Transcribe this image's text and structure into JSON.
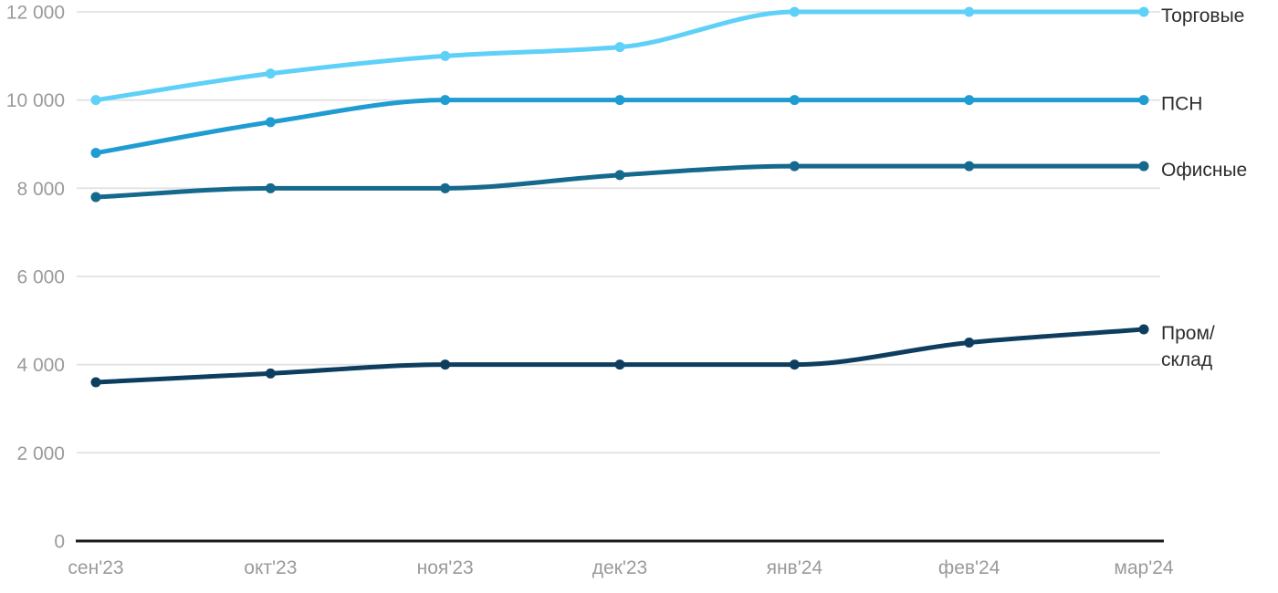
{
  "chart_data": {
    "type": "line",
    "title": "",
    "xlabel": "",
    "ylabel": "",
    "categories": [
      "сен'23",
      "окт'23",
      "ноя'23",
      "дек'23",
      "янв'24",
      "фев'24",
      "мар'24"
    ],
    "series": [
      {
        "name": "Торговые",
        "legend_lines": [
          "Торговые"
        ],
        "color": "#5FD0F8",
        "values": [
          10000,
          10600,
          11000,
          11200,
          12000,
          12000,
          12000
        ]
      },
      {
        "name": "ПСН",
        "legend_lines": [
          "ПСН"
        ],
        "color": "#1F9CD2",
        "values": [
          8800,
          9500,
          10000,
          10000,
          10000,
          10000,
          10000
        ]
      },
      {
        "name": "Офисные",
        "legend_lines": [
          "Офисные"
        ],
        "color": "#14698C",
        "values": [
          7800,
          8000,
          8000,
          8300,
          8500,
          8500,
          8500
        ]
      },
      {
        "name": "Пром/склад",
        "legend_lines": [
          "Пром/",
          "склад"
        ],
        "color": "#0E3E5F",
        "values": [
          3600,
          3800,
          4000,
          4000,
          4000,
          4500,
          4800
        ]
      }
    ],
    "y_ticks": [
      {
        "value": 0,
        "label": "0"
      },
      {
        "value": 2000,
        "label": "2 000"
      },
      {
        "value": 4000,
        "label": "4 000"
      },
      {
        "value": 6000,
        "label": "6 000"
      },
      {
        "value": 8000,
        "label": "8 000"
      },
      {
        "value": 10000,
        "label": "10 000"
      },
      {
        "value": 12000,
        "label": "12 000"
      }
    ],
    "ylim": [
      0,
      12000
    ],
    "grid": "horizontal",
    "legend_position": "right-of-line-ends",
    "line_interpolation": "monotone",
    "markers": "circle"
  },
  "colors": {
    "background": "#FFFFFF",
    "gridline": "#E2E2E2",
    "axis_line": "#1A1A1A",
    "tick_label": "#9A9A9A",
    "legend_text": "#2D2D2D"
  }
}
